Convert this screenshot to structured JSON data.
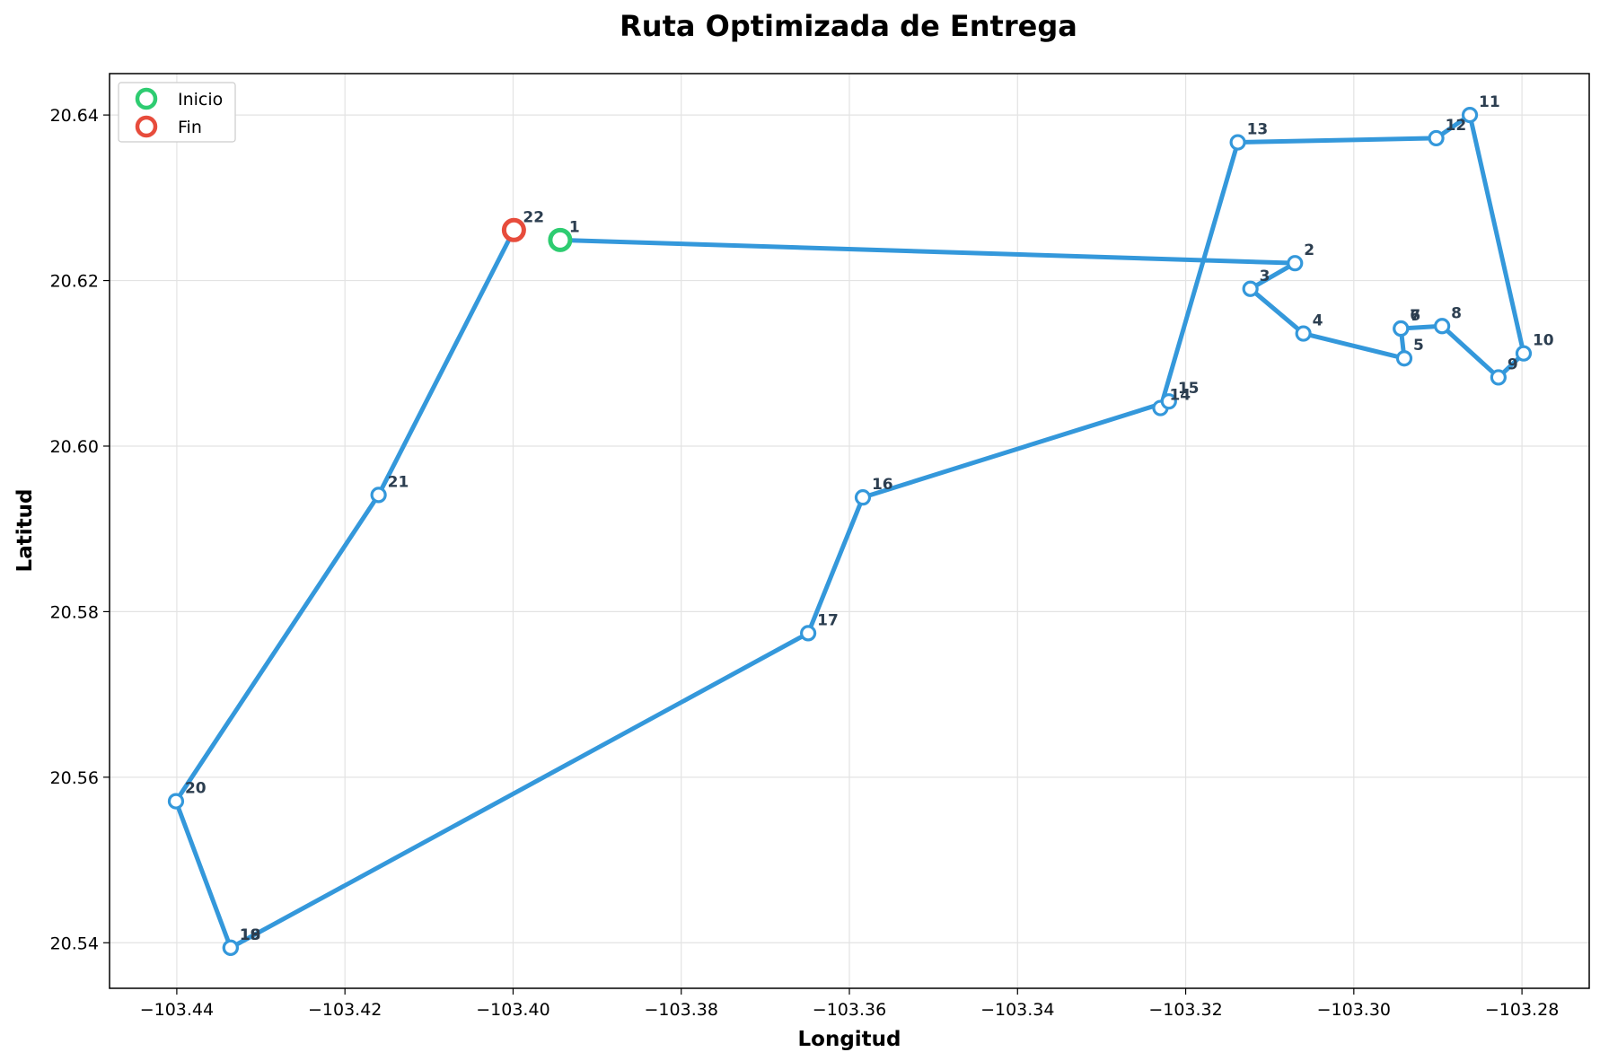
{
  "chart_data": {
    "type": "line",
    "title": "Ruta Optimizada de Entrega",
    "xlabel": "Longitud",
    "ylabel": "Latitud",
    "xlim": [
      -103.448,
      -103.272
    ],
    "ylim": [
      20.5345,
      20.645
    ],
    "x_ticks": [
      -103.44,
      -103.42,
      -103.4,
      -103.38,
      -103.36,
      -103.34,
      -103.32,
      -103.3,
      -103.28
    ],
    "x_tick_labels": [
      "−103.44",
      "−103.42",
      "−103.40",
      "−103.38",
      "−103.36",
      "−103.34",
      "−103.32",
      "−103.30",
      "−103.28"
    ],
    "y_ticks": [
      20.54,
      20.56,
      20.58,
      20.6,
      20.62,
      20.64
    ],
    "y_tick_labels": [
      "20.54",
      "20.56",
      "20.58",
      "20.60",
      "20.62",
      "20.64"
    ],
    "grid": true,
    "legend_position": "top-left",
    "colors": {
      "route": "#3498db",
      "start": "#2ecc71",
      "end": "#e74c3c",
      "label": "#2c3e50"
    },
    "legend": [
      {
        "label": "Inicio",
        "color": "#2ecc71"
      },
      {
        "label": "Fin",
        "color": "#e74c3c"
      }
    ],
    "series": [
      {
        "points": [
          {
            "label": "1",
            "x": -103.3944,
            "y": 20.6249
          },
          {
            "label": "2",
            "x": -103.307,
            "y": 20.6221
          },
          {
            "label": "3",
            "x": -103.3123,
            "y": 20.619
          },
          {
            "label": "4",
            "x": -103.306,
            "y": 20.6136
          },
          {
            "label": "5",
            "x": -103.294,
            "y": 20.6106
          },
          {
            "label": "6",
            "x": -103.2944,
            "y": 20.6142
          },
          {
            "label": "7",
            "x": -103.2944,
            "y": 20.6142
          },
          {
            "label": "8",
            "x": -103.2895,
            "y": 20.6145
          },
          {
            "label": "9",
            "x": -103.2828,
            "y": 20.6083
          },
          {
            "label": "10",
            "x": -103.2798,
            "y": 20.6112
          },
          {
            "label": "11",
            "x": -103.2862,
            "y": 20.64
          },
          {
            "label": "12",
            "x": -103.2902,
            "y": 20.6372
          },
          {
            "label": "13",
            "x": -103.3138,
            "y": 20.6367
          },
          {
            "label": "14",
            "x": -103.323,
            "y": 20.6046
          },
          {
            "label": "15",
            "x": -103.322,
            "y": 20.6054
          },
          {
            "label": "16",
            "x": -103.3584,
            "y": 20.5938
          },
          {
            "label": "17",
            "x": -103.3649,
            "y": 20.5774
          },
          {
            "label": "18",
            "x": -103.4336,
            "y": 20.5394
          },
          {
            "label": "19",
            "x": -103.4336,
            "y": 20.5394
          },
          {
            "label": "20",
            "x": -103.4401,
            "y": 20.5571
          },
          {
            "label": "21",
            "x": -103.416,
            "y": 20.5941
          },
          {
            "label": "22",
            "x": -103.3999,
            "y": 20.6261
          }
        ]
      }
    ]
  }
}
